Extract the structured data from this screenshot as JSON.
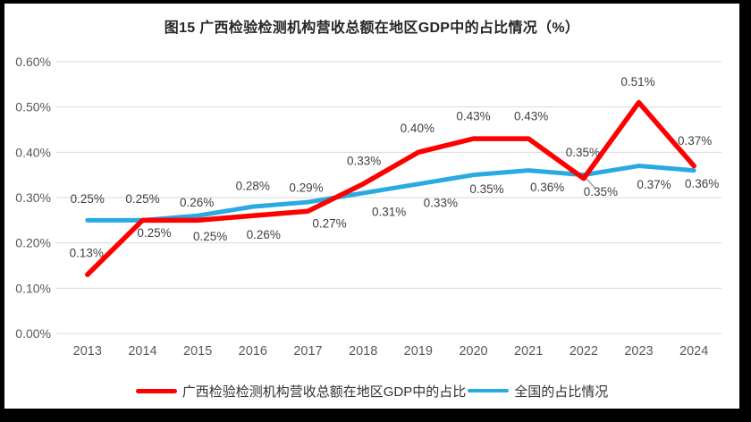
{
  "chart_data": {
    "type": "line",
    "title": "图15 广西检验检测机构营收总额在地区GDP中的占比情况（%）",
    "categories": [
      "2013",
      "2014",
      "2015",
      "2016",
      "2017",
      "2018",
      "2019",
      "2020",
      "2021",
      "2022",
      "2023",
      "2024"
    ],
    "series": [
      {
        "name": "广西检验检测机构营收总额在地区GDP中的占比",
        "color": "#FF0000",
        "values": [
          0.13,
          0.25,
          0.25,
          0.26,
          0.27,
          0.33,
          0.4,
          0.43,
          0.43,
          0.35,
          0.51,
          0.37
        ],
        "labels": [
          "0.13%",
          "0.25%",
          "0.25%",
          "0.26%",
          "0.27%",
          "0.33%",
          "0.40%",
          "0.43%",
          "0.43%",
          "0.35%",
          "0.51%",
          "0.37%"
        ]
      },
      {
        "name": "全国的占比情况",
        "color": "#29ABE2",
        "values": [
          0.25,
          0.25,
          0.26,
          0.28,
          0.29,
          0.31,
          0.33,
          0.35,
          0.36,
          0.35,
          0.37,
          0.36
        ],
        "labels": [
          "0.25%",
          "0.25%",
          "0.26%",
          "0.28%",
          "0.29%",
          "0.31%",
          "0.33%",
          "0.35%",
          "0.36%",
          "0.35%",
          "0.37%",
          "0.36%"
        ]
      }
    ],
    "ylim": [
      0,
      0.6
    ],
    "ytick_step": 0.1,
    "yticks": [
      "0.00%",
      "0.10%",
      "0.20%",
      "0.30%",
      "0.40%",
      "0.50%",
      "0.60%"
    ],
    "grid": true,
    "data_labels": true,
    "legend_position": "bottom",
    "annotation": {
      "leader_line_series": "全国的占比情况",
      "leader_line_category": "2022"
    },
    "colors": {
      "gridline": "#D9D9D9",
      "axis_text": "#595959",
      "data_label_text": "#404040",
      "leader_line": "#A6A6A6",
      "title_text": "#262626",
      "frame": "#000000",
      "background": "#FFFFFF"
    }
  }
}
